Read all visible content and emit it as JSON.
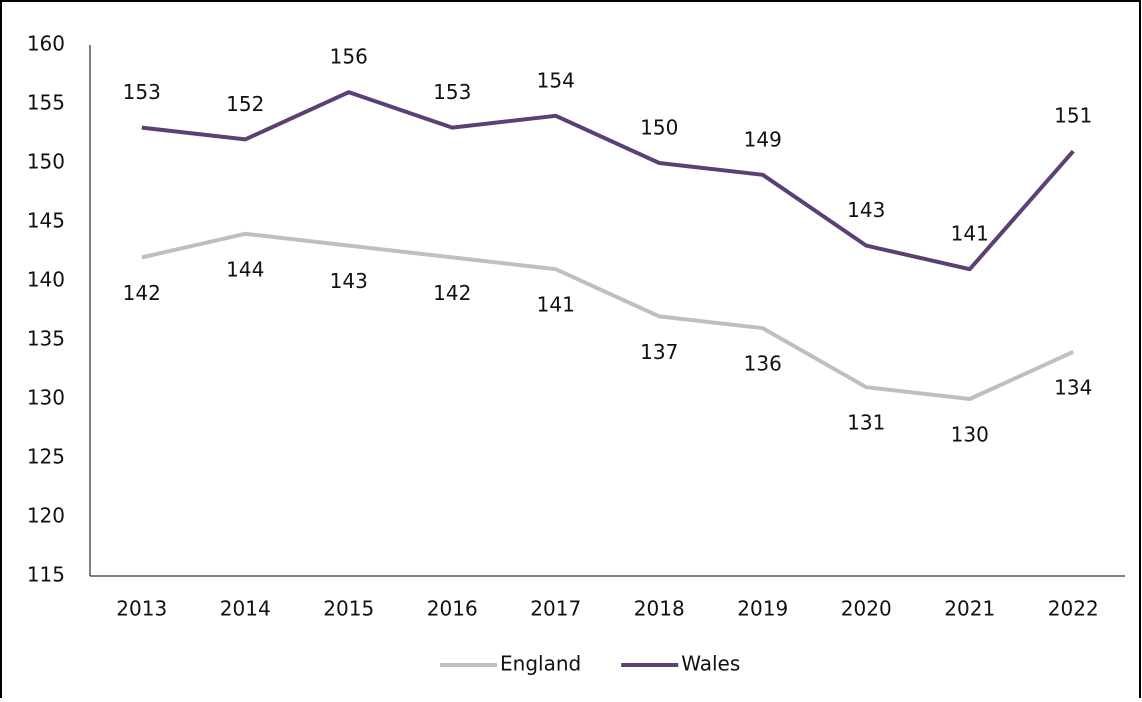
{
  "chart_data": {
    "type": "line",
    "categories": [
      "2013",
      "2014",
      "2015",
      "2016",
      "2017",
      "2018",
      "2019",
      "2020",
      "2021",
      "2022"
    ],
    "series": [
      {
        "name": "England",
        "color": "#bfbfbf",
        "values": [
          142,
          144,
          143,
          142,
          141,
          137,
          136,
          131,
          130,
          134
        ]
      },
      {
        "name": "Wales",
        "color": "#5c3f74",
        "values": [
          153,
          152,
          156,
          153,
          154,
          150,
          149,
          143,
          141,
          151
        ]
      }
    ],
    "ylim": [
      115,
      160
    ],
    "yticks": [
      115,
      120,
      125,
      130,
      135,
      140,
      145,
      150,
      155,
      160
    ],
    "grid": false,
    "legend": "bottom"
  }
}
